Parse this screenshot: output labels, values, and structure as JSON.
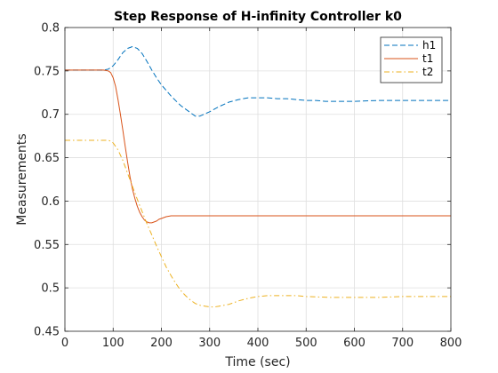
{
  "chart_data": {
    "type": "line",
    "title": "Step Response of H-infinity Controller k0",
    "xlabel": "Time (sec)",
    "ylabel": "Measurements",
    "xlim": [
      0,
      800
    ],
    "ylim": [
      0.45,
      0.8
    ],
    "x_ticks": [
      0,
      100,
      200,
      300,
      400,
      500,
      600,
      700,
      800
    ],
    "x_tick_labels": [
      "0",
      "100",
      "200",
      "300",
      "400",
      "500",
      "600",
      "700",
      "800"
    ],
    "y_ticks": [
      0.45,
      0.5,
      0.55,
      0.6,
      0.65,
      0.7,
      0.75,
      0.8
    ],
    "y_tick_labels": [
      "0.45",
      "0.5",
      "0.55",
      "0.6",
      "0.65",
      "0.7",
      "0.75",
      "0.8"
    ],
    "grid": true,
    "legend_position": "top-right",
    "series": [
      {
        "name": "h1",
        "color": "#0072BD",
        "dash": "dashed",
        "x": [
          0,
          80,
          90,
          100,
          110,
          120,
          130,
          140,
          150,
          160,
          170,
          180,
          190,
          200,
          220,
          240,
          260,
          270,
          280,
          300,
          320,
          340,
          360,
          380,
          400,
          420,
          440,
          460,
          480,
          500,
          520,
          540,
          560,
          580,
          600,
          650,
          700,
          750,
          800
        ],
        "y": [
          0.751,
          0.751,
          0.752,
          0.756,
          0.763,
          0.771,
          0.776,
          0.778,
          0.776,
          0.77,
          0.761,
          0.751,
          0.742,
          0.734,
          0.721,
          0.71,
          0.702,
          0.698,
          0.698,
          0.703,
          0.709,
          0.714,
          0.717,
          0.719,
          0.719,
          0.719,
          0.718,
          0.718,
          0.717,
          0.716,
          0.716,
          0.715,
          0.715,
          0.715,
          0.715,
          0.716,
          0.716,
          0.716,
          0.716
        ]
      },
      {
        "name": "t1",
        "color": "#D95319",
        "dash": "solid",
        "x": [
          0,
          80,
          90,
          95,
          100,
          105,
          110,
          115,
          120,
          125,
          130,
          135,
          140,
          145,
          150,
          155,
          160,
          165,
          170,
          175,
          180,
          185,
          190,
          195,
          200,
          210,
          220,
          230,
          240,
          260,
          300,
          350,
          400,
          500,
          600,
          700,
          800
        ],
        "y": [
          0.751,
          0.751,
          0.75,
          0.748,
          0.742,
          0.732,
          0.717,
          0.7,
          0.682,
          0.663,
          0.645,
          0.628,
          0.614,
          0.603,
          0.594,
          0.587,
          0.582,
          0.578,
          0.576,
          0.575,
          0.575,
          0.576,
          0.577,
          0.579,
          0.58,
          0.582,
          0.583,
          0.583,
          0.583,
          0.583,
          0.583,
          0.583,
          0.583,
          0.583,
          0.583,
          0.583,
          0.583
        ]
      },
      {
        "name": "t2",
        "color": "#EDB120",
        "dash": "dashdot",
        "x": [
          0,
          80,
          90,
          95,
          100,
          110,
          120,
          130,
          140,
          150,
          160,
          170,
          180,
          190,
          200,
          210,
          220,
          230,
          240,
          250,
          260,
          270,
          280,
          290,
          300,
          310,
          320,
          330,
          340,
          350,
          360,
          380,
          400,
          420,
          440,
          460,
          480,
          500,
          550,
          600,
          650,
          700,
          750,
          800
        ],
        "y": [
          0.67,
          0.67,
          0.67,
          0.669,
          0.667,
          0.659,
          0.647,
          0.632,
          0.617,
          0.602,
          0.588,
          0.574,
          0.561,
          0.548,
          0.536,
          0.524,
          0.514,
          0.505,
          0.497,
          0.491,
          0.486,
          0.482,
          0.48,
          0.479,
          0.478,
          0.478,
          0.479,
          0.48,
          0.481,
          0.483,
          0.485,
          0.488,
          0.49,
          0.491,
          0.491,
          0.491,
          0.491,
          0.49,
          0.489,
          0.489,
          0.489,
          0.49,
          0.49,
          0.49
        ]
      }
    ]
  }
}
